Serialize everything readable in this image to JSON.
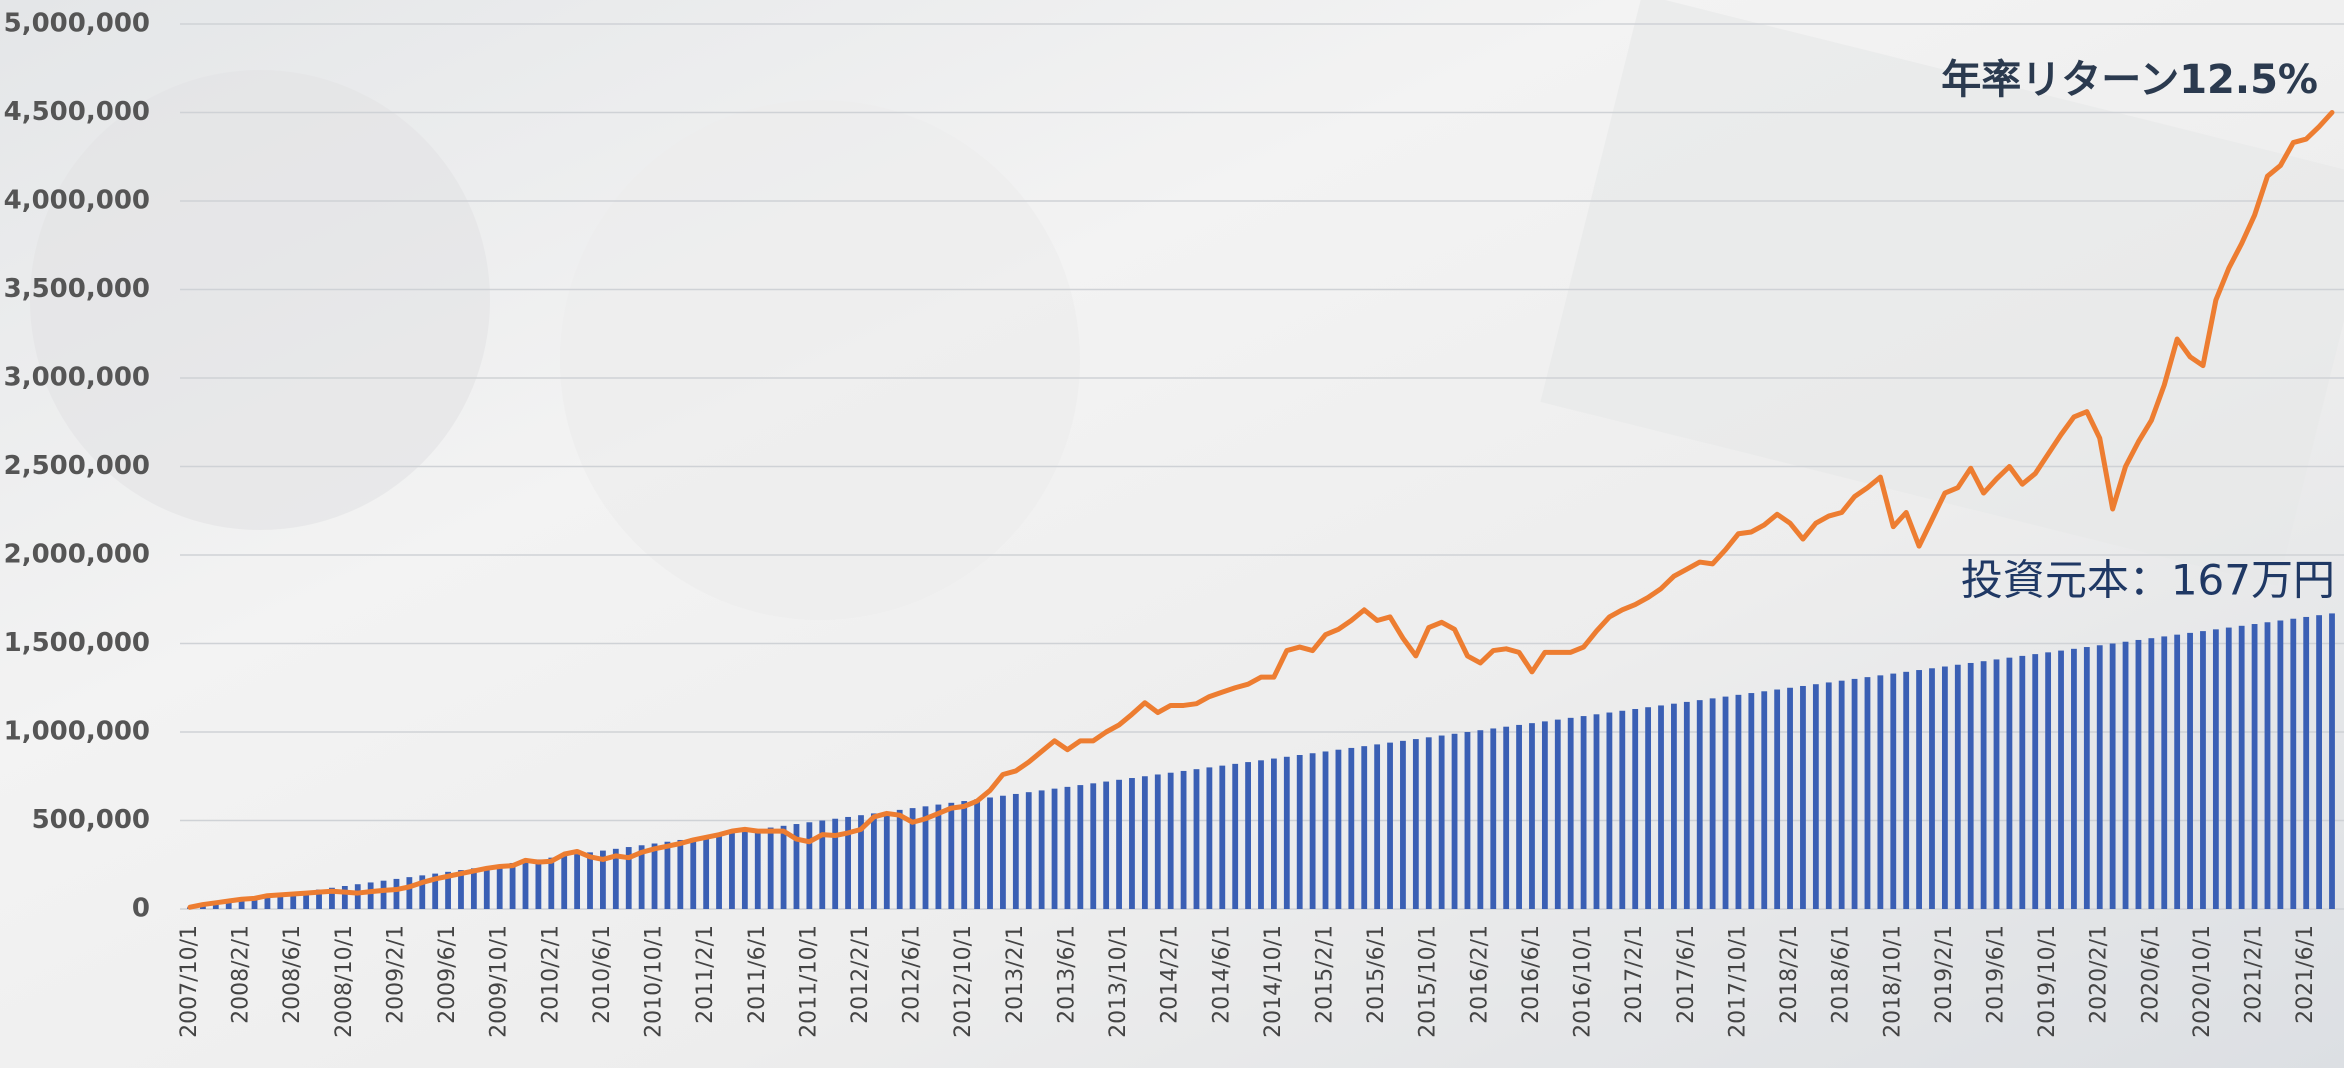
{
  "chart_data": {
    "type": "combo",
    "annotations": [
      "年率リターン12.5%",
      "投資元本：167万円"
    ],
    "categories": [
      "2007/10/1",
      null,
      null,
      null,
      "2008/2/1",
      null,
      null,
      null,
      "2008/6/1",
      null,
      null,
      null,
      "2008/10/1",
      null,
      null,
      null,
      "2009/2/1",
      null,
      null,
      null,
      "2009/6/1",
      null,
      null,
      null,
      "2009/10/1",
      null,
      null,
      null,
      "2010/2/1",
      null,
      null,
      null,
      "2010/6/1",
      null,
      null,
      null,
      "2010/10/1",
      null,
      null,
      null,
      "2011/2/1",
      null,
      null,
      null,
      "2011/6/1",
      null,
      null,
      null,
      "2011/10/1",
      null,
      null,
      null,
      "2012/2/1",
      null,
      null,
      null,
      "2012/6/1",
      null,
      null,
      null,
      "2012/10/1",
      null,
      null,
      null,
      "2013/2/1",
      null,
      null,
      null,
      "2013/6/1",
      null,
      null,
      null,
      "2013/10/1",
      null,
      null,
      null,
      "2014/2/1",
      null,
      null,
      null,
      "2014/6/1",
      null,
      null,
      null,
      "2014/10/1",
      null,
      null,
      null,
      "2015/2/1",
      null,
      null,
      null,
      "2015/6/1",
      null,
      null,
      null,
      "2015/10/1",
      null,
      null,
      null,
      "2016/2/1",
      null,
      null,
      null,
      "2016/6/1",
      null,
      null,
      null,
      "2016/10/1",
      null,
      null,
      null,
      "2017/2/1",
      null,
      null,
      null,
      "2017/6/1",
      null,
      null,
      null,
      "2017/10/1",
      null,
      null,
      null,
      "2018/2/1",
      null,
      null,
      null,
      "2018/6/1",
      null,
      null,
      null,
      "2018/10/1",
      null,
      null,
      null,
      "2019/2/1",
      null,
      null,
      null,
      "2019/6/1",
      null,
      null,
      null,
      "2019/10/1",
      null,
      null,
      null,
      "2020/2/1",
      null,
      null,
      null,
      "2020/6/1",
      null,
      null,
      null,
      "2020/10/1",
      null,
      null,
      null,
      "2021/2/1",
      null,
      null,
      null,
      "2021/6/1",
      null,
      null
    ],
    "series": [
      {
        "type": "bar",
        "color": "#3a5fb4",
        "values": [
          10000,
          20000,
          30000,
          40000,
          50000,
          60000,
          70000,
          80000,
          90000,
          100000,
          110000,
          120000,
          130000,
          140000,
          150000,
          160000,
          170000,
          180000,
          190000,
          200000,
          210000,
          220000,
          230000,
          240000,
          250000,
          260000,
          270000,
          280000,
          290000,
          300000,
          310000,
          320000,
          330000,
          340000,
          350000,
          360000,
          370000,
          380000,
          390000,
          400000,
          410000,
          420000,
          430000,
          440000,
          450000,
          460000,
          470000,
          480000,
          490000,
          500000,
          510000,
          520000,
          530000,
          540000,
          550000,
          560000,
          570000,
          580000,
          590000,
          600000,
          610000,
          620000,
          630000,
          640000,
          650000,
          660000,
          670000,
          680000,
          690000,
          700000,
          710000,
          720000,
          730000,
          740000,
          750000,
          760000,
          770000,
          780000,
          790000,
          800000,
          810000,
          820000,
          830000,
          840000,
          850000,
          860000,
          870000,
          880000,
          890000,
          900000,
          910000,
          920000,
          930000,
          940000,
          950000,
          960000,
          970000,
          980000,
          990000,
          1000000,
          1010000,
          1020000,
          1030000,
          1040000,
          1050000,
          1060000,
          1070000,
          1080000,
          1090000,
          1100000,
          1110000,
          1120000,
          1130000,
          1140000,
          1150000,
          1160000,
          1170000,
          1180000,
          1190000,
          1200000,
          1210000,
          1220000,
          1230000,
          1240000,
          1250000,
          1260000,
          1270000,
          1280000,
          1290000,
          1300000,
          1310000,
          1320000,
          1330000,
          1340000,
          1350000,
          1360000,
          1370000,
          1380000,
          1390000,
          1400000,
          1410000,
          1420000,
          1430000,
          1440000,
          1450000,
          1460000,
          1470000,
          1480000,
          1490000,
          1500000,
          1510000,
          1520000,
          1530000,
          1540000,
          1550000,
          1560000,
          1570000,
          1580000,
          1590000,
          1600000,
          1610000,
          1620000,
          1630000,
          1640000,
          1650000,
          1660000,
          1670000
        ]
      },
      {
        "type": "line",
        "color": "#ed7d31",
        "values": [
          10000,
          25000,
          35000,
          45000,
          55000,
          60000,
          75000,
          80000,
          85000,
          90000,
          95000,
          100000,
          95000,
          90000,
          98000,
          105000,
          110000,
          125000,
          150000,
          170000,
          185000,
          200000,
          215000,
          230000,
          240000,
          245000,
          275000,
          265000,
          270000,
          310000,
          325000,
          295000,
          280000,
          300000,
          290000,
          320000,
          340000,
          355000,
          370000,
          390000,
          405000,
          420000,
          440000,
          450000,
          440000,
          440000,
          440000,
          395000,
          380000,
          420000,
          415000,
          430000,
          450000,
          520000,
          540000,
          530000,
          490000,
          510000,
          540000,
          570000,
          580000,
          610000,
          670000,
          760000,
          780000,
          830000,
          890000,
          950000,
          900000,
          950000,
          950000,
          1000000,
          1040000,
          1100000,
          1165000,
          1110000,
          1150000,
          1150000,
          1160000,
          1200000,
          1225000,
          1250000,
          1270000,
          1310000,
          1310000,
          1460000,
          1480000,
          1460000,
          1550000,
          1580000,
          1630000,
          1690000,
          1630000,
          1650000,
          1530000,
          1430000,
          1590000,
          1620000,
          1580000,
          1430000,
          1390000,
          1460000,
          1470000,
          1450000,
          1340000,
          1450000,
          1450000,
          1450000,
          1480000,
          1570000,
          1650000,
          1690000,
          1720000,
          1760000,
          1810000,
          1880000,
          1920000,
          1960000,
          1950000,
          2030000,
          2120000,
          2130000,
          2170000,
          2230000,
          2180000,
          2090000,
          2180000,
          2220000,
          2240000,
          2330000,
          2380000,
          2440000,
          2160000,
          2240000,
          2050000,
          2200000,
          2350000,
          2380000,
          2490000,
          2350000,
          2430000,
          2500000,
          2400000,
          2460000,
          2570000,
          2680000,
          2780000,
          2810000,
          2660000,
          2260000,
          2500000,
          2640000,
          2760000,
          2960000,
          3220000,
          3120000,
          3070000,
          3440000,
          3620000,
          3760000,
          3920000,
          4140000,
          4200000,
          4330000,
          4350000,
          4420000,
          4500000
        ]
      }
    ],
    "ylim": [
      0,
      5000000
    ],
    "yticks": [
      0,
      {
        "value": 500000,
        "label": "500,000"
      },
      {
        "value": 1000000,
        "label": "1,000,000"
      },
      {
        "value": 1500000,
        "label": "1,500,000"
      },
      {
        "value": 2000000,
        "label": "2,000,000"
      },
      {
        "value": 2500000,
        "label": "2,500,000"
      },
      {
        "value": 3000000,
        "label": "3,000,000"
      },
      {
        "value": 3500000,
        "label": "3,500,000"
      },
      {
        "value": 4000000,
        "label": "4,000,000"
      },
      {
        "value": 4500000,
        "label": "4,500,000"
      },
      {
        "value": 5000000,
        "label": "5,000,000"
      }
    ],
    "grid": true
  }
}
